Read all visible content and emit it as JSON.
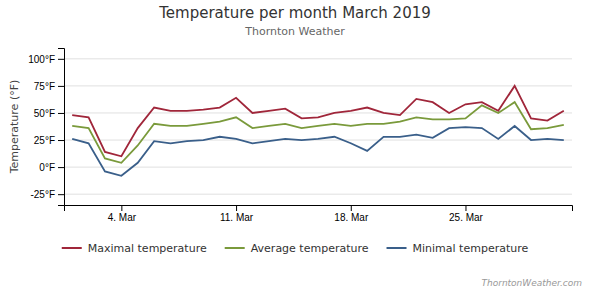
{
  "chart_data": {
    "type": "line",
    "title": "Temperature per month March 2019",
    "subtitle": "Thornton Weather",
    "annotations": [
      "ThorntonWeather.com"
    ],
    "y_label": "Temperature (°F)",
    "x": [
      0,
      1,
      2,
      3,
      4,
      5,
      6,
      7,
      8,
      9,
      10,
      11,
      12,
      13,
      14,
      15,
      16,
      17,
      18,
      19,
      20,
      21,
      22,
      23,
      24,
      25,
      26,
      27,
      28,
      29,
      30
    ],
    "xlim": [
      -0.5,
      30.5
    ],
    "xticks": [
      {
        "value": 3,
        "label": "4. Mar"
      },
      {
        "value": 10,
        "label": "11. Mar"
      },
      {
        "value": 17,
        "label": "18. Mar"
      },
      {
        "value": 24,
        "label": "25. Mar"
      }
    ],
    "ylim": [
      -35,
      110
    ],
    "yticks": [
      {
        "value": -25,
        "label": "-25°F"
      },
      {
        "value": 0,
        "label": "0°F"
      },
      {
        "value": 25,
        "label": "25°F"
      },
      {
        "value": 50,
        "label": "50°F"
      },
      {
        "value": 75,
        "label": "75°F"
      },
      {
        "value": 100,
        "label": "100°F"
      }
    ],
    "grid": true,
    "legend": "bottom",
    "series": [
      {
        "name": "Maximal temperature",
        "color": "#a0263a",
        "values": [
          48,
          46,
          14,
          10,
          36,
          55,
          52,
          52,
          53,
          55,
          64,
          50,
          52,
          54,
          45,
          46,
          50,
          52,
          55,
          50,
          48,
          63,
          60,
          50,
          58,
          60,
          52,
          75,
          45,
          43,
          52
        ]
      },
      {
        "name": "Average temperature",
        "color": "#7a9a3b",
        "values": [
          38,
          36,
          8,
          4,
          20,
          40,
          38,
          38,
          40,
          42,
          46,
          36,
          38,
          40,
          36,
          38,
          40,
          38,
          40,
          40,
          42,
          46,
          44,
          44,
          45,
          57,
          50,
          60,
          35,
          36,
          39
        ]
      },
      {
        "name": "Minimal temperature",
        "color": "#3a5f8a",
        "values": [
          26,
          22,
          -4,
          -8,
          4,
          24,
          22,
          24,
          25,
          28,
          26,
          22,
          24,
          26,
          25,
          26,
          28,
          22,
          15,
          28,
          28,
          30,
          27,
          36,
          37,
          36,
          26,
          38,
          25,
          26,
          25
        ]
      }
    ]
  }
}
